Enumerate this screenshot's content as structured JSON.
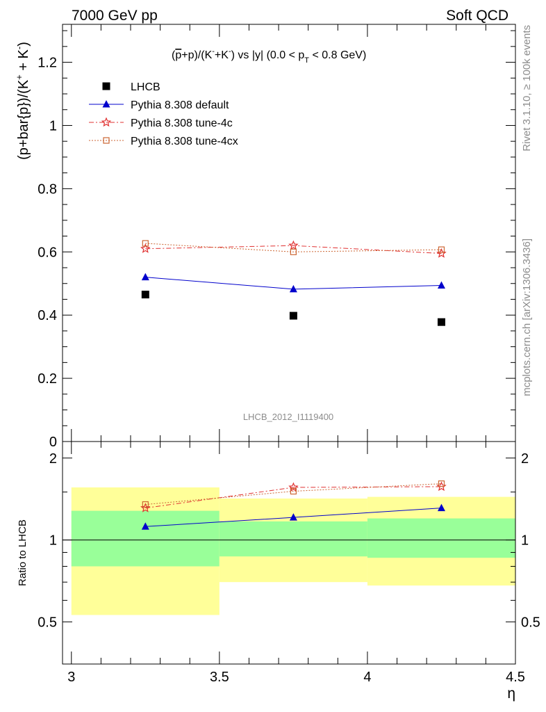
{
  "header": {
    "left": "7000 GeV pp",
    "right": "Soft QCD"
  },
  "side_labels": {
    "rivet": "Rivet 3.1.10, ≥ 100k events",
    "source": "mcplots.cern.ch [arXiv:1306.3436]"
  },
  "colors": {
    "data": "#000000",
    "default": "#0000cc",
    "tune4c": "#e03030",
    "tune4cx": "#cc6633",
    "band_inner": "#99ff99",
    "band_outer": "#ffff99"
  },
  "chart_data": [
    {
      "type": "scatter",
      "panel": "main",
      "title_parts": {
        "a": "(",
        "b": "p",
        "c": "+p)/(K",
        "d": "-",
        "e": "+K",
        "f": "-",
        "g": ") vs |y| (0.0 < p",
        "h": "T",
        "i": " < 0.8 GeV)"
      },
      "ylabel_parts": {
        "a": "(p+bar{p})/(K",
        "b": "+",
        "c": " + K",
        "d": "-",
        "e": ")"
      },
      "watermark": "LHCB_2012_I1119400",
      "ylim": [
        0,
        1.32
      ],
      "yticks": [
        0,
        0.2,
        0.4,
        0.6,
        0.8,
        1,
        1.2
      ],
      "ytick_labels": [
        "0",
        "0.2",
        "0.4",
        "0.6",
        "0.8",
        "1",
        "1.2"
      ],
      "x": [
        3.25,
        3.75,
        4.25
      ],
      "legend_position": "top-left",
      "series": [
        {
          "name": "LHCB",
          "values": [
            0.465,
            0.398,
            0.378
          ],
          "marker": "square-filled",
          "color": "#000000",
          "line": "none"
        },
        {
          "name": "Pythia 8.308 default",
          "values": [
            0.52,
            0.482,
            0.494
          ],
          "marker": "triangle-filled",
          "color": "#0000cc",
          "line": "solid"
        },
        {
          "name": "Pythia 8.308 tune-4c",
          "values": [
            0.61,
            0.62,
            0.595
          ],
          "marker": "star-open",
          "color": "#e03030",
          "line": "dashdot"
        },
        {
          "name": "Pythia 8.308 tune-4cx",
          "values": [
            0.627,
            0.6,
            0.607
          ],
          "marker": "square-open",
          "color": "#cc6633",
          "line": "dotted"
        }
      ]
    },
    {
      "type": "scatter",
      "panel": "ratio",
      "ylabel": "Ratio to LHCB",
      "xlabel": "η",
      "xlim": [
        2.97,
        4.5
      ],
      "xticks": [
        3,
        3.5,
        4,
        4.5
      ],
      "xtick_labels": [
        "3",
        "3.5",
        "4",
        "4.5"
      ],
      "ylim": [
        0.35,
        2.3
      ],
      "yticks": [
        0.5,
        1,
        2
      ],
      "ytick_labels": [
        "0.5",
        "1",
        "2"
      ],
      "bins": [
        [
          3.0,
          3.5
        ],
        [
          3.5,
          4.0
        ],
        [
          4.0,
          4.5
        ]
      ],
      "band_inner": [
        [
          0.8,
          1.28
        ],
        [
          0.87,
          1.17
        ],
        [
          0.86,
          1.2
        ]
      ],
      "band_outer": [
        [
          0.53,
          1.56
        ],
        [
          0.7,
          1.42
        ],
        [
          0.68,
          1.44
        ]
      ],
      "x": [
        3.25,
        3.75,
        4.25
      ],
      "series": [
        {
          "name": "Pythia 8.308 default",
          "values": [
            1.12,
            1.21,
            1.31
          ]
        },
        {
          "name": "Pythia 8.308 tune-4c",
          "values": [
            1.31,
            1.56,
            1.57
          ]
        },
        {
          "name": "Pythia 8.308 tune-4cx",
          "values": [
            1.35,
            1.51,
            1.61
          ]
        }
      ]
    }
  ]
}
